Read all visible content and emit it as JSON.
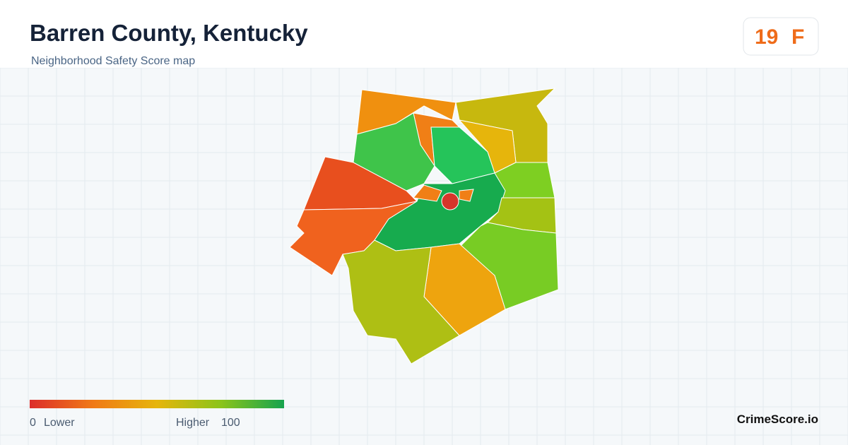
{
  "header": {
    "title": "Barren County, Kentucky",
    "subtitle": "Neighborhood Safety Score map",
    "score": 19,
    "grade": "F"
  },
  "legend": {
    "min": 0,
    "low_label": "Lower",
    "high_label": "Higher",
    "max": 100
  },
  "footer": {
    "brand": "CrimeScore.io"
  }
}
